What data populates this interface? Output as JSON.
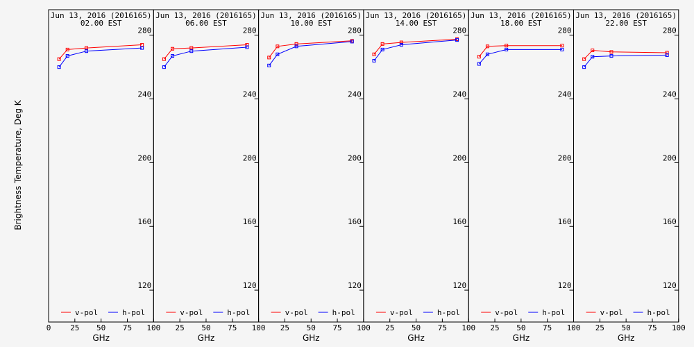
{
  "chart_data": {
    "type": "line",
    "ylabel": "Brightness Temperature, Deg K",
    "xlabel": "GHz",
    "xlim": [
      0,
      100
    ],
    "ylim": [
      100,
      296
    ],
    "xticks": [
      0,
      25,
      50,
      75,
      100
    ],
    "yticks": [
      120,
      160,
      200,
      240,
      280
    ],
    "legend": [
      "v-pol",
      "h-pol"
    ],
    "colors": {
      "v-pol": "#ff0000",
      "h-pol": "#0000ff"
    },
    "x": [
      10,
      18,
      36,
      89
    ],
    "panels": [
      {
        "title": "Jun 13, 2016 (2016165)",
        "subtitle": "02.00 EST",
        "series": [
          {
            "name": "v-pol",
            "values": [
              265,
              271,
              272,
              274
            ]
          },
          {
            "name": "h-pol",
            "values": [
              260,
              267,
              270,
              272
            ]
          }
        ]
      },
      {
        "title": "Jun 13, 2016 (2016165)",
        "subtitle": "06.00 EST",
        "series": [
          {
            "name": "v-pol",
            "values": [
              265,
              271.5,
              272,
              274
            ]
          },
          {
            "name": "h-pol",
            "values": [
              260,
              267,
              270,
              272.5
            ]
          }
        ]
      },
      {
        "title": "Jun 13, 2016 (2016165)",
        "subtitle": "10.00 EST",
        "series": [
          {
            "name": "v-pol",
            "values": [
              266,
              273,
              274.5,
              276.5
            ]
          },
          {
            "name": "h-pol",
            "values": [
              261,
              268,
              273,
              276
            ]
          }
        ]
      },
      {
        "title": "Jun 13, 2016 (2016165)",
        "subtitle": "14.00 EST",
        "series": [
          {
            "name": "v-pol",
            "values": [
              268,
              274.5,
              275.5,
              277.5
            ]
          },
          {
            "name": "h-pol",
            "values": [
              264,
              271,
              274,
              277
            ]
          }
        ]
      },
      {
        "title": "Jun 13, 2016 (2016165)",
        "subtitle": "18.00 EST",
        "series": [
          {
            "name": "v-pol",
            "values": [
              266.5,
              273,
              273.5,
              273.5
            ]
          },
          {
            "name": "h-pol",
            "values": [
              262,
              268,
              271,
              271
            ]
          }
        ]
      },
      {
        "title": "Jun 13, 2016 (2016165)",
        "subtitle": "22.00 EST",
        "series": [
          {
            "name": "v-pol",
            "values": [
              265,
              270.5,
              269.5,
              269
            ]
          },
          {
            "name": "h-pol",
            "values": [
              260,
              266.5,
              267,
              267.5
            ]
          }
        ]
      }
    ]
  }
}
